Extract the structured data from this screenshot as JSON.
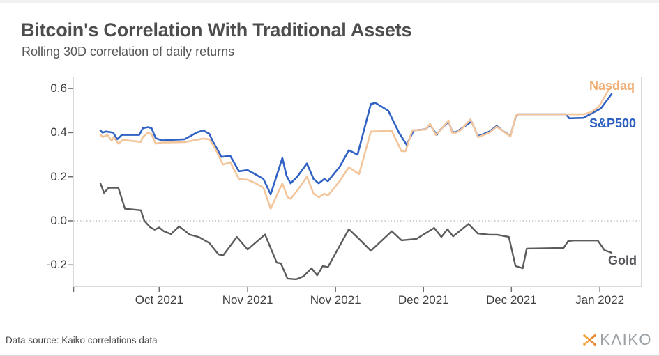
{
  "page": {
    "header": {
      "title": "Bitcoin's Correlation With Traditional Assets",
      "subtitle": "Rolling 30D correlation of daily returns"
    },
    "footer": {
      "source": "Data source: Kaiko correlations data",
      "brand": "KΛIKO"
    }
  },
  "colors": {
    "sp500_line": "#3062c4",
    "nasdaq_line": "#f2c59b",
    "gold_line": "#5b5b5b",
    "nasdaq_label": "#f0ae74",
    "sp500_label": "#2d5fc1",
    "gold_label": "#55565a",
    "zero_line": "#b5b5b5",
    "plot_border": "#d9d9d9",
    "tick_mark": "#6e6e6e",
    "brand_icon_orange": "#f2a93f",
    "brand_icon_dark_orange": "#e68a2e"
  },
  "chart_data": {
    "type": "line",
    "title": "Bitcoin's Correlation With Traditional Assets",
    "subtitle": "Rolling 30D correlation of daily returns",
    "ylabel": "Rolling 30D correlation",
    "ylim": [
      -0.3,
      0.65
    ],
    "grid": false,
    "zero_line_dotted": true,
    "legend_position": "labels-at-line-ends",
    "x_axis": {
      "unit": "percent-of-timeline",
      "ticks": [
        {
          "label": "Oct 2021",
          "t": 11.5
        },
        {
          "label": "Nov 2021",
          "t": 28.8
        },
        {
          "label": "Nov 2021",
          "t": 46.0
        },
        {
          "label": "Dec 2021",
          "t": 63.2
        },
        {
          "label": "Dec 2021",
          "t": 80.4
        },
        {
          "label": "Jan 2022",
          "t": 97.7
        }
      ]
    },
    "y_axis": {
      "ticks": [
        {
          "label": "0.6",
          "value": 0.6
        },
        {
          "label": "0.4",
          "value": 0.4
        },
        {
          "label": "0.2",
          "value": 0.2
        },
        {
          "label": "0.0",
          "value": 0.0
        },
        {
          "label": "-0.2",
          "value": -0.2
        }
      ]
    },
    "series": [
      {
        "name": "S&P500",
        "color": "#3062c4",
        "label_color": "#2d5fc1",
        "points": [
          [
            0,
            0.41
          ],
          [
            0.4,
            0.4
          ],
          [
            1.1,
            0.405
          ],
          [
            2.5,
            0.4
          ],
          [
            3.3,
            0.37
          ],
          [
            4.2,
            0.39
          ],
          [
            7.6,
            0.39
          ],
          [
            8.3,
            0.42
          ],
          [
            9.3,
            0.425
          ],
          [
            10,
            0.42
          ],
          [
            10.8,
            0.375
          ],
          [
            12,
            0.365
          ],
          [
            16.5,
            0.37
          ],
          [
            18.8,
            0.4
          ],
          [
            20.1,
            0.41
          ],
          [
            21.3,
            0.395
          ],
          [
            22,
            0.36
          ],
          [
            23.7,
            0.29
          ],
          [
            25.4,
            0.295
          ],
          [
            27.1,
            0.225
          ],
          [
            28.8,
            0.23
          ],
          [
            30.4,
            0.21
          ],
          [
            31.9,
            0.19
          ],
          [
            33.3,
            0.12
          ],
          [
            35.6,
            0.285
          ],
          [
            36.4,
            0.205
          ],
          [
            37.2,
            0.17
          ],
          [
            38.5,
            0.2
          ],
          [
            40.4,
            0.26
          ],
          [
            41.7,
            0.19
          ],
          [
            42.7,
            0.17
          ],
          [
            43.8,
            0.19
          ],
          [
            44.5,
            0.18
          ],
          [
            46.8,
            0.245
          ],
          [
            48.6,
            0.32
          ],
          [
            50.3,
            0.3
          ],
          [
            52.9,
            0.53
          ],
          [
            53.8,
            0.535
          ],
          [
            56.3,
            0.5
          ],
          [
            58.4,
            0.4
          ],
          [
            59.9,
            0.345
          ],
          [
            61.3,
            0.41
          ],
          [
            63.6,
            0.415
          ],
          [
            64.5,
            0.435
          ],
          [
            65.8,
            0.39
          ],
          [
            66.4,
            0.41
          ],
          [
            68.1,
            0.45
          ],
          [
            68.8,
            0.405
          ],
          [
            69.4,
            0.4
          ],
          [
            70.4,
            0.415
          ],
          [
            72.6,
            0.45
          ],
          [
            73.8,
            0.385
          ],
          [
            74.6,
            0.39
          ],
          [
            76.1,
            0.405
          ],
          [
            77.5,
            0.43
          ],
          [
            78.6,
            0.41
          ],
          [
            80.2,
            0.385
          ],
          [
            81.3,
            0.475
          ],
          [
            81.7,
            0.483
          ],
          [
            91.1,
            0.483
          ],
          [
            91.7,
            0.465
          ],
          [
            94.5,
            0.467
          ],
          [
            97.5,
            0.505
          ],
          [
            97.9,
            0.51
          ],
          [
            100,
            0.575
          ]
        ]
      },
      {
        "name": "Nasdaq",
        "color": "#f2c59b",
        "label_color": "#f0ae74",
        "points": [
          [
            0,
            0.39
          ],
          [
            0.5,
            0.38
          ],
          [
            1.4,
            0.39
          ],
          [
            2.2,
            0.363
          ],
          [
            2.6,
            0.38
          ],
          [
            3.5,
            0.35
          ],
          [
            4.4,
            0.367
          ],
          [
            7.9,
            0.358
          ],
          [
            8.3,
            0.38
          ],
          [
            9.3,
            0.4
          ],
          [
            10,
            0.393
          ],
          [
            10.8,
            0.35
          ],
          [
            12,
            0.355
          ],
          [
            16.5,
            0.357
          ],
          [
            20.1,
            0.373
          ],
          [
            21.3,
            0.37
          ],
          [
            22.2,
            0.34
          ],
          [
            24,
            0.255
          ],
          [
            25.4,
            0.266
          ],
          [
            27.1,
            0.19
          ],
          [
            28.8,
            0.186
          ],
          [
            30.4,
            0.17
          ],
          [
            31.9,
            0.15
          ],
          [
            33.3,
            0.055
          ],
          [
            35.6,
            0.17
          ],
          [
            36.6,
            0.107
          ],
          [
            37.2,
            0.1
          ],
          [
            38.6,
            0.14
          ],
          [
            40.4,
            0.2
          ],
          [
            41.7,
            0.123
          ],
          [
            42.7,
            0.107
          ],
          [
            43.8,
            0.123
          ],
          [
            44.5,
            0.114
          ],
          [
            46.8,
            0.18
          ],
          [
            48.6,
            0.243
          ],
          [
            50.6,
            0.212
          ],
          [
            52.9,
            0.405
          ],
          [
            57,
            0.408
          ],
          [
            58.9,
            0.316
          ],
          [
            59.7,
            0.316
          ],
          [
            61,
            0.41
          ],
          [
            63.6,
            0.414
          ],
          [
            64.5,
            0.44
          ],
          [
            65.6,
            0.39
          ],
          [
            66.4,
            0.408
          ],
          [
            68.1,
            0.455
          ],
          [
            68.8,
            0.4
          ],
          [
            69.4,
            0.398
          ],
          [
            70.4,
            0.41
          ],
          [
            72.4,
            0.46
          ],
          [
            73.9,
            0.38
          ],
          [
            74.6,
            0.386
          ],
          [
            76.1,
            0.4
          ],
          [
            77.5,
            0.427
          ],
          [
            78.6,
            0.41
          ],
          [
            80.2,
            0.382
          ],
          [
            81.3,
            0.478
          ],
          [
            81.7,
            0.483
          ],
          [
            91.1,
            0.483
          ],
          [
            94.5,
            0.483
          ],
          [
            96,
            0.493
          ],
          [
            97.5,
            0.518
          ],
          [
            99.5,
            0.597
          ]
        ]
      },
      {
        "name": "Gold",
        "color": "#5b5b5b",
        "label_color": "#55565a",
        "points": [
          [
            0,
            0.17
          ],
          [
            0.7,
            0.127
          ],
          [
            1.6,
            0.15
          ],
          [
            3.5,
            0.15
          ],
          [
            4.8,
            0.055
          ],
          [
            7.9,
            0.048
          ],
          [
            8.6,
            0
          ],
          [
            9.7,
            -0.028
          ],
          [
            10.6,
            -0.04
          ],
          [
            11.5,
            -0.03
          ],
          [
            12.4,
            -0.047
          ],
          [
            13.8,
            -0.06
          ],
          [
            15.4,
            -0.025
          ],
          [
            17.5,
            -0.063
          ],
          [
            19.2,
            -0.073
          ],
          [
            21.3,
            -0.1
          ],
          [
            23.1,
            -0.152
          ],
          [
            24,
            -0.157
          ],
          [
            26.7,
            -0.073
          ],
          [
            28.8,
            -0.13
          ],
          [
            32.2,
            -0.062
          ],
          [
            34.5,
            -0.19
          ],
          [
            35.3,
            -0.193
          ],
          [
            36.6,
            -0.262
          ],
          [
            38.3,
            -0.265
          ],
          [
            39.7,
            -0.252
          ],
          [
            41.3,
            -0.215
          ],
          [
            42.4,
            -0.247
          ],
          [
            43.5,
            -0.205
          ],
          [
            44.5,
            -0.21
          ],
          [
            48.6,
            -0.038
          ],
          [
            50.6,
            -0.082
          ],
          [
            52.9,
            -0.136
          ],
          [
            57,
            -0.047
          ],
          [
            58.9,
            -0.088
          ],
          [
            61.8,
            -0.082
          ],
          [
            65.3,
            -0.032
          ],
          [
            66.7,
            -0.073
          ],
          [
            67.9,
            -0.038
          ],
          [
            69,
            -0.07
          ],
          [
            72,
            -0.014
          ],
          [
            73.8,
            -0.057
          ],
          [
            76.1,
            -0.063
          ],
          [
            77.6,
            -0.063
          ],
          [
            79.9,
            -0.073
          ],
          [
            81.2,
            -0.205
          ],
          [
            82.6,
            -0.215
          ],
          [
            83.4,
            -0.126
          ],
          [
            90.6,
            -0.123
          ],
          [
            91.5,
            -0.092
          ],
          [
            92.5,
            -0.089
          ],
          [
            97.3,
            -0.089
          ],
          [
            98.6,
            -0.133
          ],
          [
            100,
            -0.145
          ]
        ]
      }
    ]
  }
}
